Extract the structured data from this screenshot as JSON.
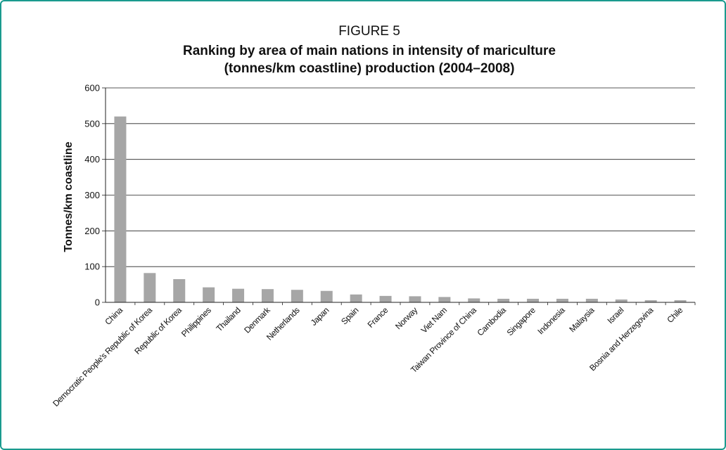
{
  "figure_label": "FIGURE 5",
  "chart_data": {
    "type": "bar",
    "title": "Ranking by area of main nations in intensity of mariculture",
    "subtitle": "(tonnes/km coastline) production (2004–2008)",
    "xlabel": "",
    "ylabel": "Tonnes/km coastline",
    "ylim": [
      0,
      600
    ],
    "yticks": [
      0,
      100,
      200,
      300,
      400,
      500,
      600
    ],
    "grid": true,
    "bar_color": "#a6a6a6",
    "categories": [
      "China",
      "Democratic People's Republic of Korea",
      "Republic of Korea",
      "Philippines",
      "Thailand",
      "Denmark",
      "Netherlands",
      "Japan",
      "Spain",
      "France",
      "Norway",
      "Viet Nam",
      "Taiwan Province of China",
      "Cambodia",
      "Singapore",
      "Indonesia",
      "Malaysia",
      "Israel",
      "Bosnia and Herzegovina",
      "Chile"
    ],
    "values": [
      520,
      82,
      65,
      42,
      38,
      37,
      35,
      32,
      22,
      18,
      17,
      15,
      11,
      10,
      10,
      10,
      10,
      8,
      6,
      6
    ]
  }
}
